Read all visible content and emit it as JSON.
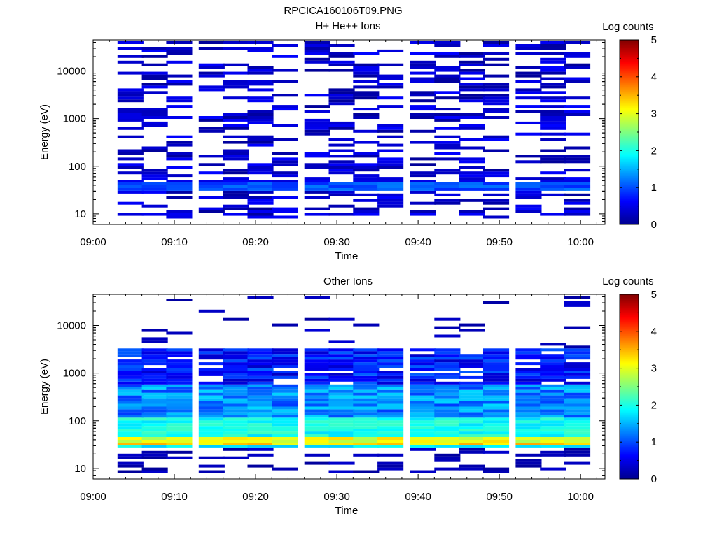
{
  "figure": {
    "title": "RPCICA160106T09.PNG"
  },
  "colorbar": {
    "label": "Log counts",
    "range": [
      0,
      5
    ],
    "ticks": [
      "0",
      "1",
      "2",
      "3",
      "4",
      "5"
    ]
  },
  "axes": {
    "xlabel": "Time",
    "ylabel": "Energy (eV)",
    "xticks": [
      "09:00",
      "09:10",
      "09:20",
      "09:30",
      "09:40",
      "09:50",
      "10:00"
    ],
    "yticks": [
      "10",
      "100",
      "1000",
      "10000"
    ]
  },
  "chart_data": [
    {
      "type": "heatmap",
      "title": "H+ He++ Ions",
      "xlabel": "Time",
      "ylabel": "Energy (eV)",
      "y_scale": "log",
      "x_range": [
        "09:00",
        "10:03"
      ],
      "y_range": [
        6,
        45000
      ],
      "z_label": "Log counts",
      "z_range": [
        0,
        5
      ],
      "time_columns": [
        "09:03",
        "09:06",
        "09:09",
        "09:13",
        "09:16",
        "09:19",
        "09:22",
        "09:26",
        "09:29",
        "09:32",
        "09:35",
        "09:39",
        "09:42",
        "09:45",
        "09:48",
        "09:52",
        "09:55",
        "09:58"
      ],
      "description_of_values": "sparse counts mostly near 0-0.7 log counts across 10 eV-40 keV, with a continuous band near 30-45 eV at about 0.8-1.2 log counts"
    },
    {
      "type": "heatmap",
      "title": "Other Ions",
      "xlabel": "Time",
      "ylabel": "Energy (eV)",
      "y_scale": "log",
      "x_range": [
        "09:00",
        "10:03"
      ],
      "y_range": [
        6,
        45000
      ],
      "z_label": "Log counts",
      "z_range": [
        0,
        5
      ],
      "time_columns": [
        "09:03",
        "09:06",
        "09:09",
        "09:13",
        "09:16",
        "09:19",
        "09:22",
        "09:26",
        "09:29",
        "09:32",
        "09:35",
        "09:39",
        "09:42",
        "09:45",
        "09:48",
        "09:52",
        "09:55",
        "09:58"
      ],
      "description_of_values": "dense counts from ~25 eV to ~3 keV rising toward 2 log counts below 200 eV, with a peak band at 30-45 eV reaching about 3.5-3.8 log counts"
    }
  ]
}
